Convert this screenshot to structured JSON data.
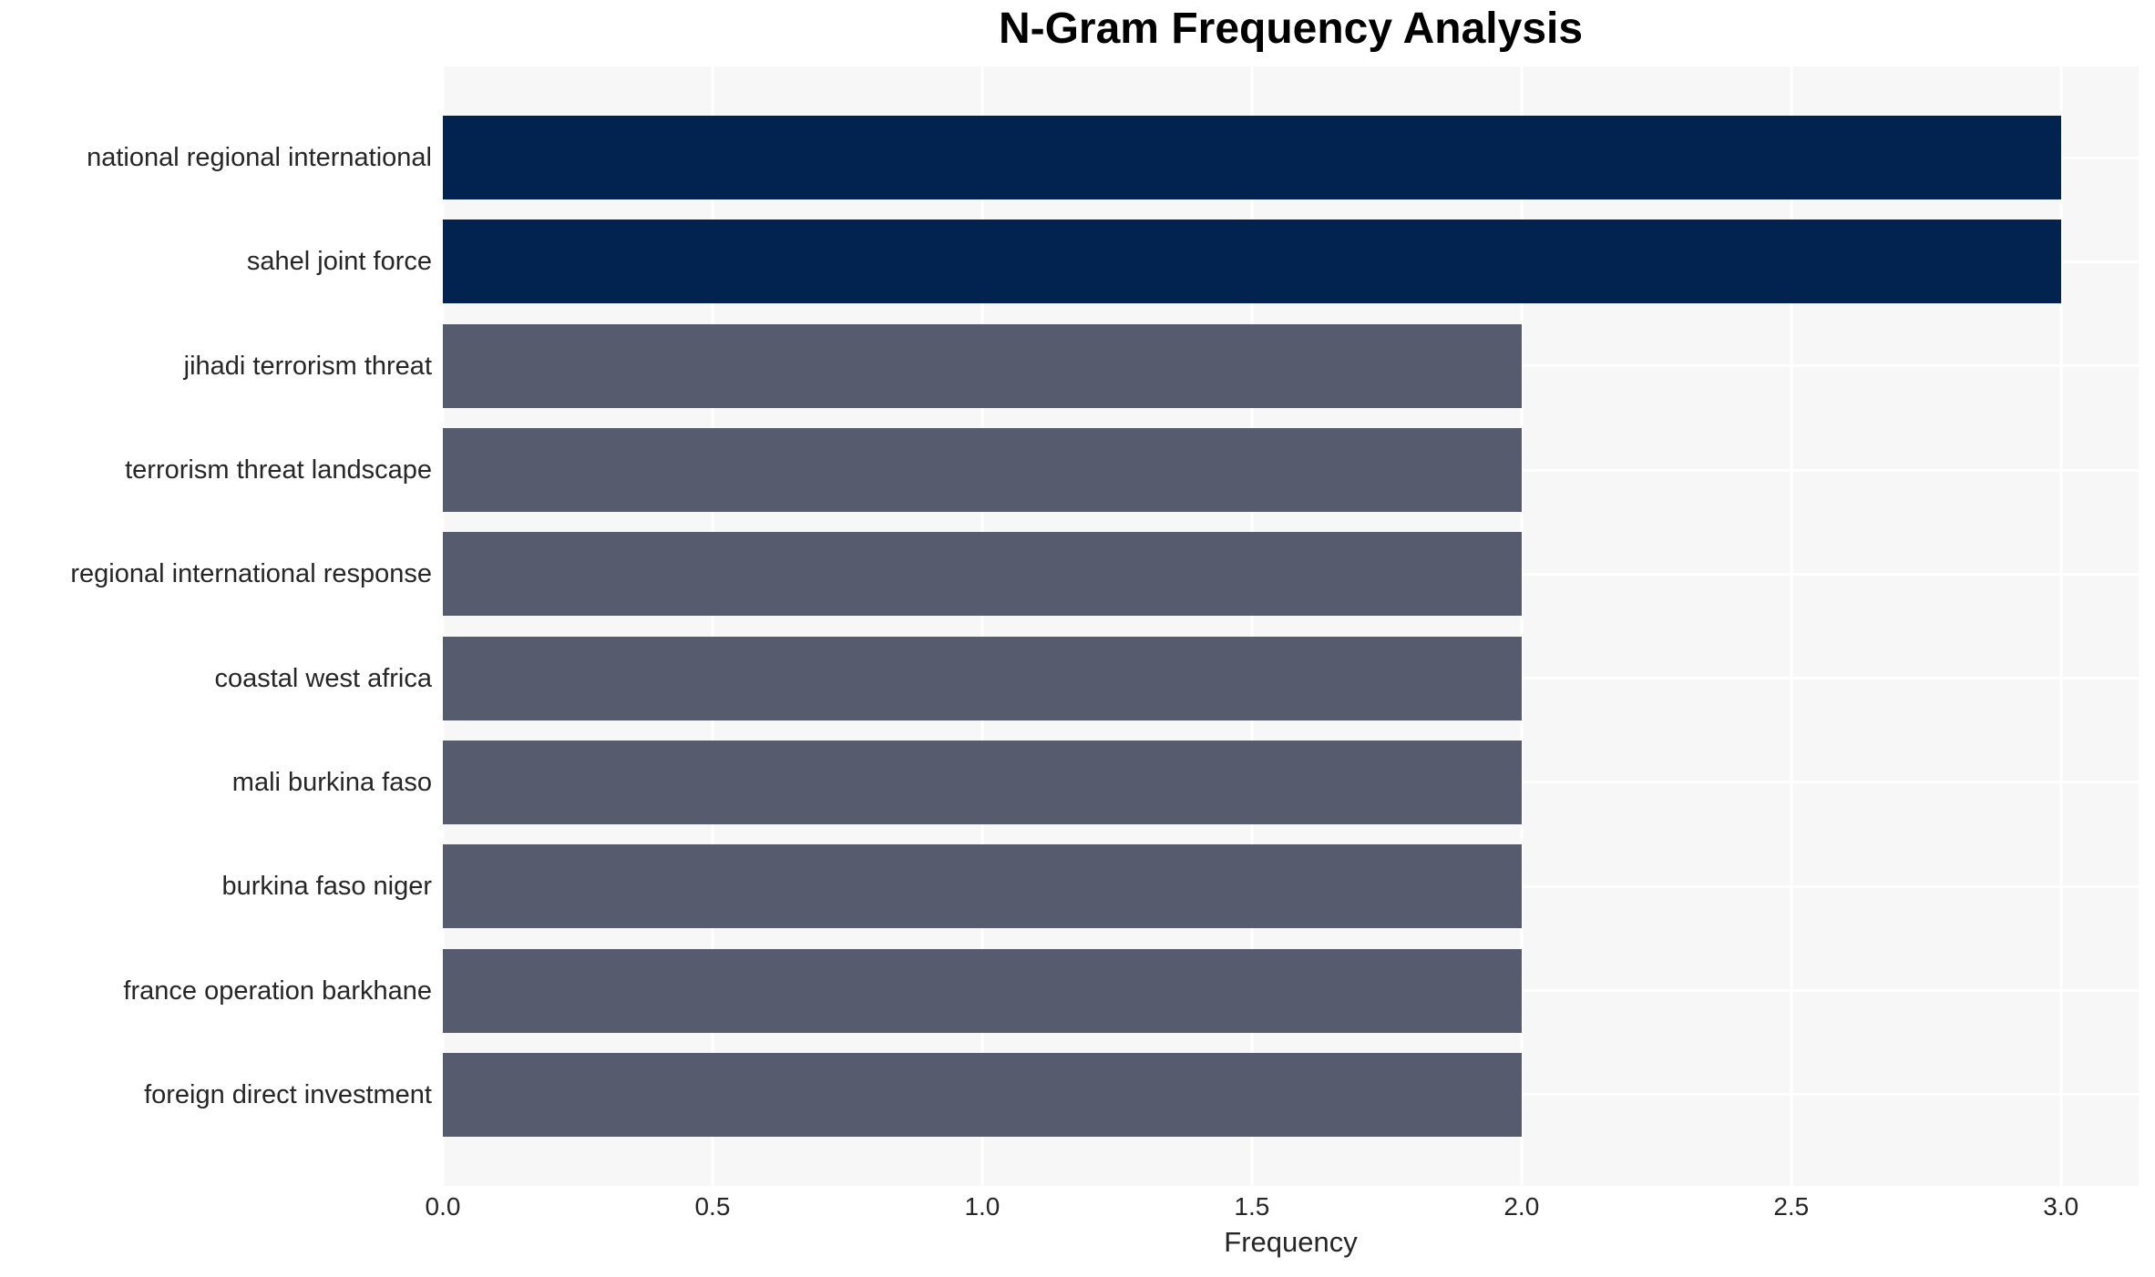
{
  "chart_data": {
    "type": "bar",
    "orientation": "horizontal",
    "title": "N-Gram Frequency Analysis",
    "xlabel": "Frequency",
    "ylabel": "",
    "categories": [
      "national regional international",
      "sahel joint force",
      "jihadi terrorism threat",
      "terrorism threat landscape",
      "regional international response",
      "coastal west africa",
      "mali burkina faso",
      "burkina faso niger",
      "france operation barkhane",
      "foreign direct investment"
    ],
    "values": [
      3,
      3,
      2,
      2,
      2,
      2,
      2,
      2,
      2,
      2
    ],
    "bar_colors": [
      "#022350",
      "#022350",
      "#565c6d",
      "#565c6d",
      "#565c6d",
      "#565c6d",
      "#565c6d",
      "#565c6d",
      "#565c6d",
      "#565c6d"
    ],
    "x_tick_labels": [
      "0.0",
      "0.5",
      "1.0",
      "1.5",
      "2.0",
      "2.5",
      "3.0"
    ],
    "x_tick_values": [
      0,
      0.5,
      1.0,
      1.5,
      2.0,
      2.5,
      3.0
    ],
    "xlim": [
      0,
      3.144
    ],
    "grid": true,
    "legend": false
  },
  "style": {
    "navy": "#022350",
    "slate": "#565c6d",
    "plot_bg": "#f7f7f7",
    "grid_color": "#ffffff",
    "text_color": "#262626",
    "title_color": "#000000",
    "page_bg": "#ffffff"
  }
}
